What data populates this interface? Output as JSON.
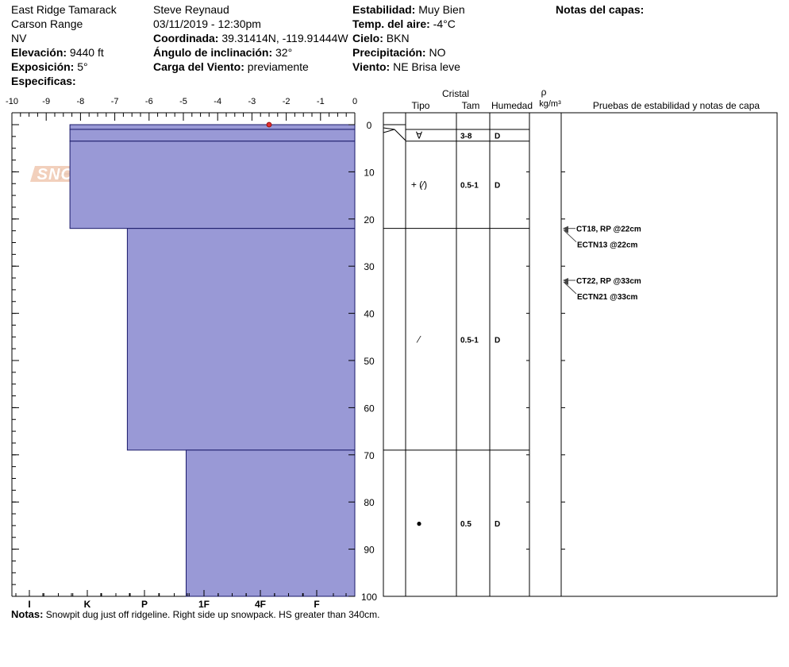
{
  "header": {
    "location": "East Ridge Tamarack",
    "range": "Carson Range",
    "state": "NV",
    "elevation_label": "Elevación:",
    "elevation_value": "9440 ft",
    "aspect_label": "Exposición:",
    "aspect_value": "5°",
    "specifics_label": "Especificas:",
    "observer": "Steve Reynaud",
    "datetime": "03/11/2019 - 12:30pm",
    "coord_label": "Coordinada:",
    "coord_value": "39.31414N, -119.91444W",
    "slope_label": "Ángulo de inclinación:",
    "slope_value": "32°",
    "wind_load_label": "Carga del Viento:",
    "wind_load_value": "previamente",
    "stability_label": "Estabilidad:",
    "stability_value": "Muy Bien",
    "air_temp_label": "Temp. del aire:",
    "air_temp_value": "-4°C",
    "sky_label": "Cielo:",
    "sky_value": "BKN",
    "precip_label": "Precipitación:",
    "precip_value": "NO",
    "wind_label": "Viento:",
    "wind_value": "NE Brisa leve",
    "layer_notes_label": "Notas del capas:"
  },
  "notes": {
    "label": "Notas:",
    "text": "Snowpit dug just off ridgeline.  Right side up snowpack.  HS greater than 340cm."
  },
  "logo": {
    "text": "SNOW PILOT"
  },
  "colors": {
    "hardness_fill": "#9999d6",
    "temp_point": "#e03030",
    "logo_text": "#f0c8b0",
    "logo_flake": "#b8c8d8"
  },
  "chart_data": {
    "type": "snow_profile",
    "temperature_axis": {
      "ticks": [
        "-10",
        "-9",
        "-8",
        "-7",
        "-6",
        "-5",
        "-4",
        "-3",
        "-2",
        "-1",
        "0"
      ],
      "range": [
        -10,
        0
      ]
    },
    "depth_axis": {
      "ticks": [
        "0",
        "10",
        "20",
        "30",
        "40",
        "50",
        "60",
        "70",
        "80",
        "90",
        "100"
      ],
      "range": [
        0,
        100
      ]
    },
    "hardness_axis": {
      "ticks": [
        "I",
        "K",
        "P",
        "1F",
        "4F",
        "F"
      ]
    },
    "temperature_points": [
      {
        "temp": -2.5,
        "depth": 0
      }
    ],
    "layers": [
      {
        "top": 0,
        "bottom": 1,
        "hardness_index": 0.7,
        "type": "",
        "size": "",
        "moisture": ""
      },
      {
        "top": 1,
        "bottom": 3.5,
        "hardness_index": 0.7,
        "type": "∀",
        "size": "3-8",
        "moisture": "D"
      },
      {
        "top": 3.5,
        "bottom": 22,
        "hardness_index": 0.7,
        "type": "+ (⁄)",
        "size": "0.5-1",
        "moisture": "D"
      },
      {
        "top": 22,
        "bottom": 69,
        "hardness_index": 1.7,
        "type": "⁄",
        "size": "0.5-1",
        "moisture": "D"
      },
      {
        "top": 69,
        "bottom": 100,
        "hardness_index": 2.7,
        "type": "●",
        "size": "0.5",
        "moisture": "D"
      }
    ],
    "columns": {
      "crystal": "Cristal",
      "type": "Tipo",
      "size": "Tam",
      "moisture": "Humedad",
      "rho": "ρ",
      "density_unit": "kg/m³",
      "tests": "Pruebas de estabilidad y notas de capa"
    },
    "stability_tests": [
      {
        "depth": 22,
        "label": "CT18, RP @22cm",
        "row": 0
      },
      {
        "depth": 22,
        "label": "ECTN13 @22cm",
        "row": 1
      },
      {
        "depth": 33,
        "label": "CT22, RP @33cm",
        "row": 0
      },
      {
        "depth": 33,
        "label": "ECTN21 @33cm",
        "row": 1
      }
    ]
  }
}
